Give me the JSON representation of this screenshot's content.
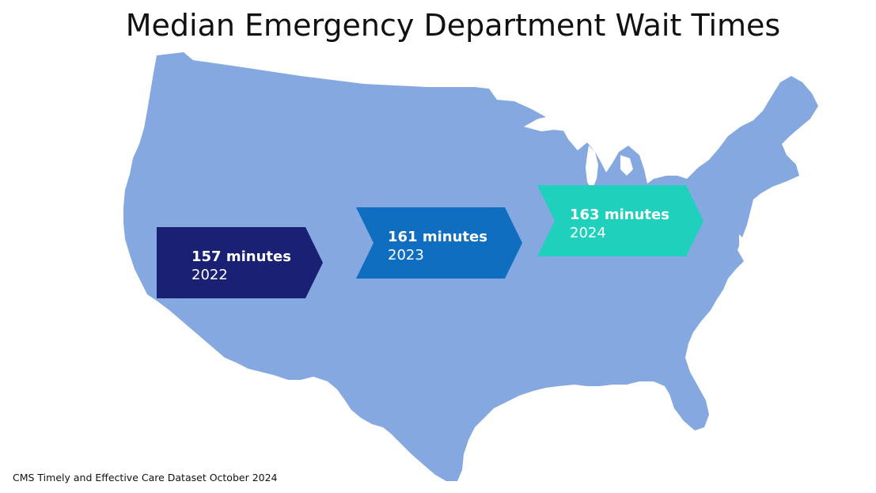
{
  "title": "Median Emergency Department Wait Times",
  "source": "CMS Timely and Effective Care Dataset October 2024",
  "colors": {
    "map_fill": "#86a8e0",
    "background": "#ffffff"
  },
  "markers": [
    {
      "value": "157 minutes",
      "year": "2022",
      "color": "#1a2174"
    },
    {
      "value": "161 minutes",
      "year": "2023",
      "color": "#0f6ec0"
    },
    {
      "value": "163 minutes",
      "year": "2024",
      "color": "#1fd1bd"
    }
  ]
}
